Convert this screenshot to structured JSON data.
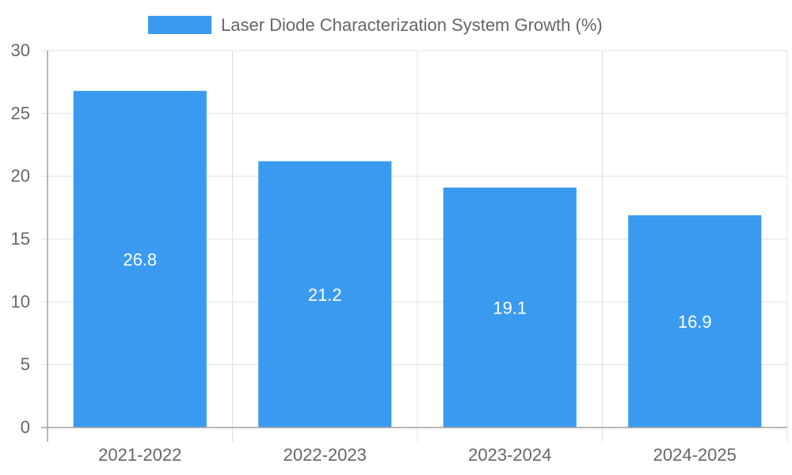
{
  "chart_data": {
    "type": "bar",
    "categories": [
      "2021-2022",
      "2022-2023",
      "2023-2024",
      "2024-2025"
    ],
    "series": [
      {
        "name": "Laser Diode Characterization System Growth (%)",
        "values": [
          26.8,
          21.2,
          19.1,
          16.9
        ],
        "color": "#3a9af0"
      }
    ],
    "data_labels": [
      "26.8",
      "21.2",
      "19.1",
      "16.9"
    ],
    "ylim": [
      0,
      30
    ],
    "yticks": [
      0,
      5,
      10,
      15,
      20,
      25,
      30
    ],
    "grid": true,
    "legend_position": "top-center"
  }
}
